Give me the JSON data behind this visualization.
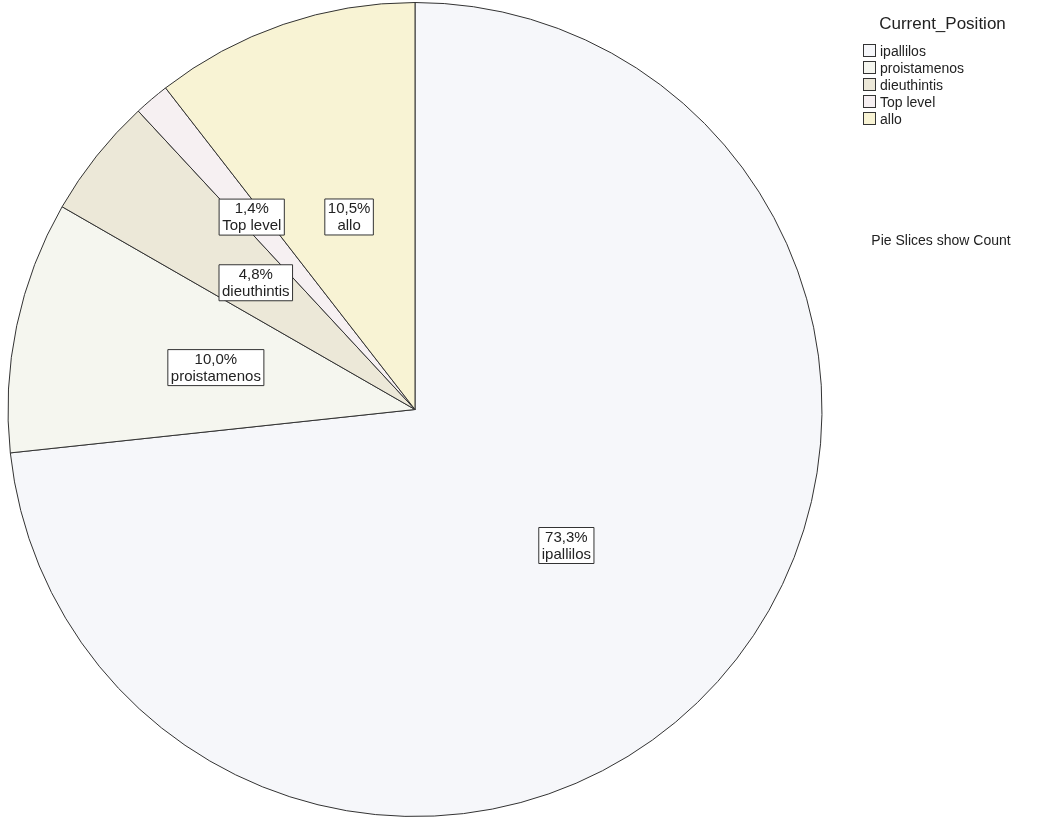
{
  "chart_data": {
    "type": "pie",
    "legend_title": "Current_Position",
    "legend": "top right",
    "categories": [
      "ipallilos",
      "proistamenos",
      "dieuthintis",
      "Top level",
      "allo"
    ],
    "values": [
      73.3,
      10.0,
      4.8,
      1.4,
      10.5
    ],
    "value_labels": [
      "73,3%",
      "10,0%",
      "4,8%",
      "1,4%",
      "10,5%"
    ],
    "colors": [
      "#f6f7fa",
      "#f5f6ef",
      "#ece8d8",
      "#f6f0f2",
      "#f8f3d4"
    ],
    "annotations": [
      "Pie Slices show Count"
    ]
  }
}
